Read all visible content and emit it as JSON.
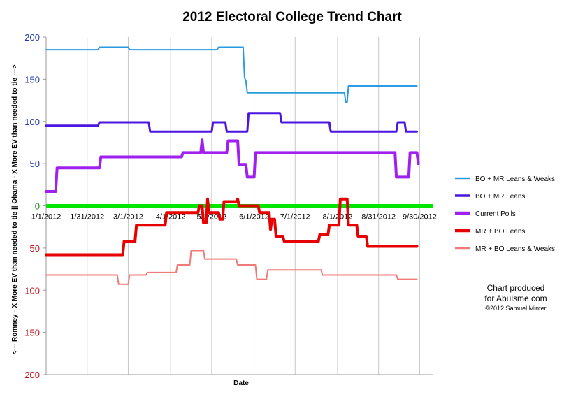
{
  "chart_data": {
    "type": "line",
    "title": "2012 Electoral College Trend Chart",
    "xlabel": "Date",
    "ylabel": "<--- Romney - X More EV than needed to tie || Obama - X More EV than needed to tie --->",
    "x_tick_labels": [
      "1/1/2012",
      "1/31/2012",
      "3/1/2012",
      "4/1/2012",
      "5/1/2012",
      "6/1/2012",
      "7/1/2012",
      "8/1/2012",
      "8/31/2012",
      "9/30/2012"
    ],
    "x_tick_dates": [
      "2012-01-01",
      "2012-01-31",
      "2012-03-01",
      "2012-04-01",
      "2012-05-01",
      "2012-06-01",
      "2012-07-01",
      "2012-08-01",
      "2012-08-31",
      "2012-09-30"
    ],
    "xlim": [
      "2012-01-01",
      "2012-10-10"
    ],
    "y_tick_values": [
      200,
      150,
      100,
      50,
      0,
      50,
      100,
      150,
      200
    ],
    "ylim": [
      -200,
      200
    ],
    "zero_line_color": "#00e600",
    "legend_position": "right",
    "grid": "vertical",
    "series": [
      {
        "name": "BO + MR Leans & Weaks",
        "color": "#2a9be0",
        "width": 2,
        "points": [
          [
            "2012-01-01",
            185
          ],
          [
            "2012-02-08",
            185
          ],
          [
            "2012-02-09",
            188
          ],
          [
            "2012-03-01",
            188
          ],
          [
            "2012-03-02",
            185
          ],
          [
            "2012-05-05",
            185
          ],
          [
            "2012-05-06",
            188
          ],
          [
            "2012-05-24",
            188
          ],
          [
            "2012-05-25",
            152
          ],
          [
            "2012-05-26",
            148
          ],
          [
            "2012-05-27",
            134
          ],
          [
            "2012-08-06",
            134
          ],
          [
            "2012-08-07",
            123
          ],
          [
            "2012-08-08",
            123
          ],
          [
            "2012-08-09",
            142
          ],
          [
            "2012-09-28",
            142
          ]
        ]
      },
      {
        "name": "BO + MR Leans",
        "color": "#4b16e0",
        "width": 3,
        "points": [
          [
            "2012-01-01",
            95
          ],
          [
            "2012-02-08",
            95
          ],
          [
            "2012-02-09",
            99
          ],
          [
            "2012-03-16",
            99
          ],
          [
            "2012-03-17",
            88
          ],
          [
            "2012-05-01",
            88
          ],
          [
            "2012-05-02",
            99
          ],
          [
            "2012-05-11",
            99
          ],
          [
            "2012-05-12",
            88
          ],
          [
            "2012-05-27",
            88
          ],
          [
            "2012-05-28",
            110
          ],
          [
            "2012-06-20",
            110
          ],
          [
            "2012-06-21",
            99
          ],
          [
            "2012-07-26",
            99
          ],
          [
            "2012-07-27",
            88
          ],
          [
            "2012-09-13",
            88
          ],
          [
            "2012-09-14",
            99
          ],
          [
            "2012-09-19",
            99
          ],
          [
            "2012-09-20",
            88
          ],
          [
            "2012-09-28",
            88
          ]
        ]
      },
      {
        "name": "Current Polls",
        "color": "#a020f0",
        "width": 4,
        "points": [
          [
            "2012-01-01",
            17
          ],
          [
            "2012-01-08",
            17
          ],
          [
            "2012-01-09",
            45
          ],
          [
            "2012-02-09",
            45
          ],
          [
            "2012-02-10",
            58
          ],
          [
            "2012-04-09",
            58
          ],
          [
            "2012-04-10",
            63
          ],
          [
            "2012-04-23",
            63
          ],
          [
            "2012-04-24",
            78
          ],
          [
            "2012-04-25",
            63
          ],
          [
            "2012-05-12",
            63
          ],
          [
            "2012-05-13",
            77
          ],
          [
            "2012-05-20",
            77
          ],
          [
            "2012-05-21",
            49
          ],
          [
            "2012-05-26",
            49
          ],
          [
            "2012-05-27",
            34
          ],
          [
            "2012-06-01",
            34
          ],
          [
            "2012-06-02",
            63
          ],
          [
            "2012-09-12",
            63
          ],
          [
            "2012-09-13",
            34
          ],
          [
            "2012-09-22",
            34
          ],
          [
            "2012-09-23",
            63
          ],
          [
            "2012-09-28",
            63
          ],
          [
            "2012-09-29",
            50
          ]
        ]
      },
      {
        "name": "MR + BO Leans",
        "color": "#e60000",
        "width": 4,
        "points": [
          [
            "2012-01-01",
            -58
          ],
          [
            "2012-02-26",
            -58
          ],
          [
            "2012-02-27",
            -42
          ],
          [
            "2012-03-06",
            -42
          ],
          [
            "2012-03-07",
            -23
          ],
          [
            "2012-03-28",
            -23
          ],
          [
            "2012-03-29",
            -8
          ],
          [
            "2012-04-21",
            -8
          ],
          [
            "2012-04-22",
            0
          ],
          [
            "2012-04-24",
            0
          ],
          [
            "2012-04-25",
            -20
          ],
          [
            "2012-04-27",
            -20
          ],
          [
            "2012-04-28",
            8
          ],
          [
            "2012-04-29",
            -8
          ],
          [
            "2012-05-06",
            -8
          ],
          [
            "2012-05-07",
            -16
          ],
          [
            "2012-05-09",
            -16
          ],
          [
            "2012-05-10",
            5
          ],
          [
            "2012-05-19",
            5
          ],
          [
            "2012-05-20",
            8
          ],
          [
            "2012-05-21",
            0
          ],
          [
            "2012-06-04",
            0
          ],
          [
            "2012-06-05",
            -8
          ],
          [
            "2012-06-12",
            -8
          ],
          [
            "2012-06-13",
            -28
          ],
          [
            "2012-06-14",
            -16
          ],
          [
            "2012-06-16",
            -16
          ],
          [
            "2012-06-17",
            -36
          ],
          [
            "2012-06-22",
            -36
          ],
          [
            "2012-06-23",
            -42
          ],
          [
            "2012-07-18",
            -42
          ],
          [
            "2012-07-19",
            -34
          ],
          [
            "2012-07-25",
            -34
          ],
          [
            "2012-07-26",
            -23
          ],
          [
            "2012-08-02",
            -23
          ],
          [
            "2012-08-03",
            8
          ],
          [
            "2012-08-08",
            8
          ],
          [
            "2012-08-09",
            -23
          ],
          [
            "2012-08-15",
            -23
          ],
          [
            "2012-08-16",
            -36
          ],
          [
            "2012-08-22",
            -36
          ],
          [
            "2012-08-23",
            -48
          ],
          [
            "2012-09-28",
            -48
          ]
        ]
      },
      {
        "name": "MR + BO Leans & Weaks",
        "color": "#f07a78",
        "width": 2,
        "points": [
          [
            "2012-01-01",
            -82
          ],
          [
            "2012-02-22",
            -82
          ],
          [
            "2012-02-23",
            -93
          ],
          [
            "2012-03-01",
            -93
          ],
          [
            "2012-03-02",
            -82
          ],
          [
            "2012-03-14",
            -82
          ],
          [
            "2012-03-15",
            -79
          ],
          [
            "2012-04-05",
            -79
          ],
          [
            "2012-04-06",
            -70
          ],
          [
            "2012-04-15",
            -70
          ],
          [
            "2012-04-16",
            -53
          ],
          [
            "2012-04-25",
            -53
          ],
          [
            "2012-04-26",
            -63
          ],
          [
            "2012-05-19",
            -63
          ],
          [
            "2012-05-20",
            -70
          ],
          [
            "2012-06-02",
            -70
          ],
          [
            "2012-06-03",
            -87
          ],
          [
            "2012-06-10",
            -87
          ],
          [
            "2012-06-11",
            -76
          ],
          [
            "2012-07-20",
            -76
          ],
          [
            "2012-07-21",
            -82
          ],
          [
            "2012-09-13",
            -82
          ],
          [
            "2012-09-14",
            -87
          ],
          [
            "2012-09-28",
            -87
          ]
        ]
      }
    ]
  },
  "credit": {
    "line1": "Chart produced",
    "line2": "for Abulsme.com",
    "line3": "©2012 Samuel Minter"
  }
}
